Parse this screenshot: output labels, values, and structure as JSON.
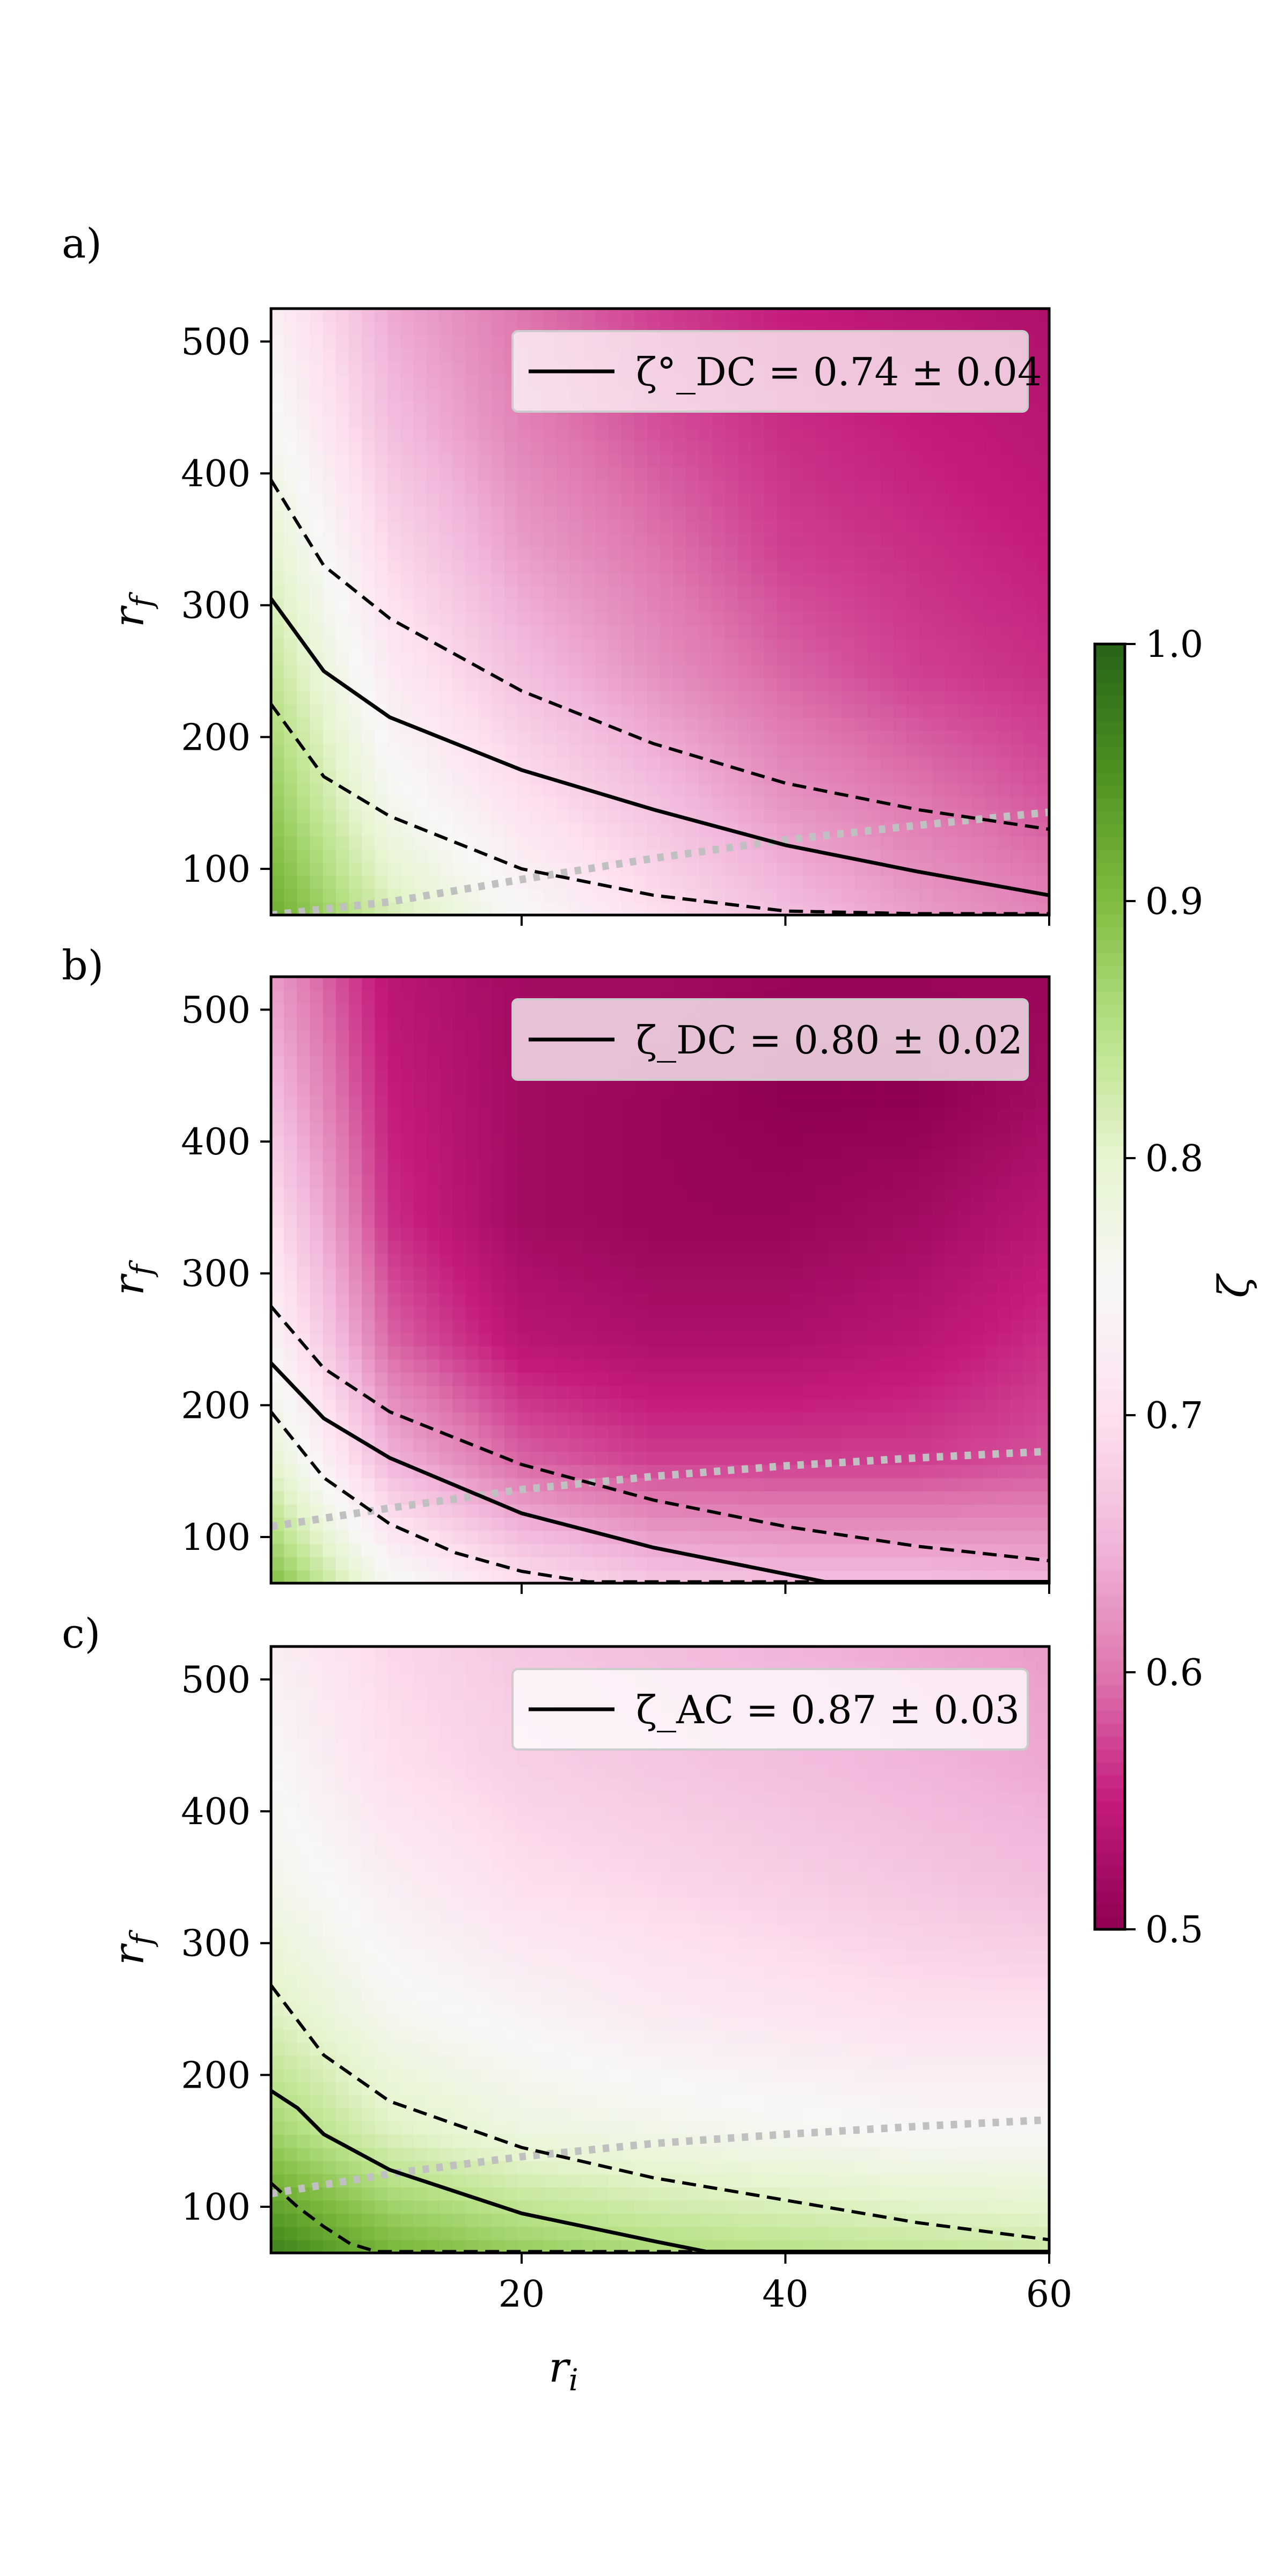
{
  "chart_data": [
    {
      "type": "heatmap",
      "panel_label": "a)",
      "xlim": [
        1,
        60
      ],
      "ylim": [
        65,
        525
      ],
      "xticks": [
        20,
        40,
        60
      ],
      "yticks": [
        100,
        200,
        300,
        400,
        500
      ],
      "ylabel": "r_f",
      "xlabel": "",
      "legend": {
        "label": "ζ°_DC = 0.74 ± 0.04",
        "location": "top-right"
      },
      "field_z": [
        [
          0.92,
          0.82,
          0.75,
          0.7,
          0.66,
          0.63,
          0.61
        ],
        [
          0.88,
          0.76,
          0.7,
          0.66,
          0.62,
          0.6,
          0.58
        ],
        [
          0.84,
          0.72,
          0.66,
          0.62,
          0.59,
          0.57,
          0.56
        ],
        [
          0.8,
          0.69,
          0.63,
          0.6,
          0.57,
          0.56,
          0.55
        ],
        [
          0.76,
          0.66,
          0.61,
          0.58,
          0.56,
          0.55,
          0.54
        ],
        [
          0.73,
          0.64,
          0.6,
          0.57,
          0.55,
          0.54,
          0.53
        ]
      ],
      "field_x": [
        1,
        10,
        20,
        30,
        40,
        50,
        60
      ],
      "field_y": [
        65,
        157,
        249,
        341,
        433,
        525
      ],
      "contour_central": {
        "x": [
          1,
          5,
          10,
          20,
          30,
          40,
          50,
          60
        ],
        "y": [
          305,
          250,
          215,
          175,
          145,
          118,
          98,
          80
        ]
      },
      "contour_lower": {
        "x": [
          1,
          5,
          10,
          20,
          30,
          40,
          50,
          60
        ],
        "y": [
          225,
          170,
          140,
          100,
          80,
          68,
          66,
          66
        ]
      },
      "contour_upper": {
        "x": [
          1,
          5,
          10,
          20,
          30,
          40,
          50,
          60
        ],
        "y": [
          395,
          330,
          290,
          235,
          195,
          165,
          145,
          130
        ]
      },
      "reference_line": {
        "x": [
          1,
          10,
          20,
          30,
          40,
          50,
          60
        ],
        "y": [
          65,
          75,
          92,
          108,
          122,
          133,
          143
        ]
      }
    },
    {
      "type": "heatmap",
      "panel_label": "b)",
      "xlim": [
        1,
        60
      ],
      "ylim": [
        65,
        525
      ],
      "xticks": [
        20,
        40,
        60
      ],
      "yticks": [
        100,
        200,
        300,
        400,
        500
      ],
      "ylabel": "r_f",
      "xlabel": "",
      "legend": {
        "label": "ζ_DC = 0.80 ± 0.02",
        "location": "top-right"
      },
      "field_z": [
        [
          0.9,
          0.76,
          0.7,
          0.67,
          0.66,
          0.66,
          0.65
        ],
        [
          0.8,
          0.65,
          0.59,
          0.57,
          0.57,
          0.57,
          0.58
        ],
        [
          0.74,
          0.59,
          0.54,
          0.53,
          0.53,
          0.54,
          0.56
        ],
        [
          0.7,
          0.56,
          0.52,
          0.51,
          0.51,
          0.52,
          0.54
        ],
        [
          0.66,
          0.55,
          0.52,
          0.51,
          0.5,
          0.5,
          0.52
        ],
        [
          0.63,
          0.54,
          0.52,
          0.52,
          0.51,
          0.51,
          0.51
        ]
      ],
      "field_x": [
        1,
        10,
        20,
        30,
        40,
        50,
        60
      ],
      "field_y": [
        65,
        157,
        249,
        341,
        433,
        525
      ],
      "contour_central": {
        "x": [
          1,
          5,
          10,
          20,
          30,
          40,
          43,
          60
        ],
        "y": [
          232,
          190,
          160,
          118,
          92,
          72,
          66,
          66
        ]
      },
      "contour_lower": {
        "x": [
          1,
          5,
          10,
          15,
          20,
          25,
          60
        ],
        "y": [
          195,
          145,
          110,
          88,
          74,
          66,
          66
        ]
      },
      "contour_upper": {
        "x": [
          1,
          5,
          10,
          20,
          30,
          40,
          50,
          60
        ],
        "y": [
          275,
          228,
          195,
          155,
          128,
          108,
          93,
          82
        ]
      },
      "reference_line": {
        "x": [
          1,
          10,
          20,
          30,
          40,
          50,
          60
        ],
        "y": [
          108,
          122,
          136,
          146,
          154,
          160,
          165
        ]
      }
    },
    {
      "type": "heatmap",
      "panel_label": "c)",
      "xlim": [
        1,
        60
      ],
      "ylim": [
        65,
        525
      ],
      "xticks": [
        20,
        40,
        60
      ],
      "yticks": [
        100,
        200,
        300,
        400,
        500
      ],
      "xlabel": "r_i",
      "ylabel": "r_f",
      "legend": {
        "label": "ζ_AC = 0.87 ± 0.03",
        "location": "top-right"
      },
      "field_z": [
        [
          0.97,
          0.91,
          0.88,
          0.86,
          0.85,
          0.84,
          0.83
        ],
        [
          0.87,
          0.81,
          0.78,
          0.77,
          0.76,
          0.75,
          0.75
        ],
        [
          0.81,
          0.76,
          0.74,
          0.72,
          0.71,
          0.7,
          0.7
        ],
        [
          0.77,
          0.73,
          0.7,
          0.69,
          0.68,
          0.67,
          0.66
        ],
        [
          0.75,
          0.7,
          0.68,
          0.67,
          0.66,
          0.65,
          0.64
        ],
        [
          0.73,
          0.69,
          0.67,
          0.66,
          0.65,
          0.64,
          0.63
        ]
      ],
      "field_x": [
        1,
        10,
        20,
        30,
        40,
        50,
        60
      ],
      "field_y": [
        65,
        157,
        249,
        341,
        433,
        525
      ],
      "contour_central": {
        "x": [
          1,
          3,
          5,
          10,
          20,
          30,
          34,
          60
        ],
        "y": [
          188,
          175,
          155,
          128,
          95,
          74,
          66,
          66
        ]
      },
      "contour_lower": {
        "x": [
          1,
          3,
          5,
          7,
          9,
          60
        ],
        "y": [
          118,
          100,
          85,
          72,
          66,
          66
        ]
      },
      "contour_upper": {
        "x": [
          1,
          5,
          10,
          20,
          30,
          40,
          50,
          60
        ],
        "y": [
          268,
          215,
          180,
          145,
          122,
          105,
          88,
          75
        ]
      },
      "reference_line": {
        "x": [
          1,
          10,
          20,
          30,
          40,
          50,
          60
        ],
        "y": [
          110,
          125,
          138,
          148,
          155,
          161,
          166
        ]
      }
    }
  ],
  "colorbar": {
    "label": "ζ",
    "range": [
      0.5,
      1.0
    ],
    "ticks": [
      0.5,
      0.6,
      0.7,
      0.8,
      0.9,
      1.0
    ],
    "tick_labels": [
      "0.5",
      "0.6",
      "0.7",
      "0.8",
      "0.9",
      "1.0"
    ],
    "colormap": "PiYG",
    "colors": [
      "#8e0152",
      "#c51b7d",
      "#de77ae",
      "#f1b6da",
      "#fde0ef",
      "#f7f7f7",
      "#e6f5d0",
      "#b8e186",
      "#7fbc41",
      "#4d9221",
      "#276419"
    ]
  },
  "style": {
    "reference_line_color": "#c0c0c0",
    "contour_color": "#000000"
  }
}
